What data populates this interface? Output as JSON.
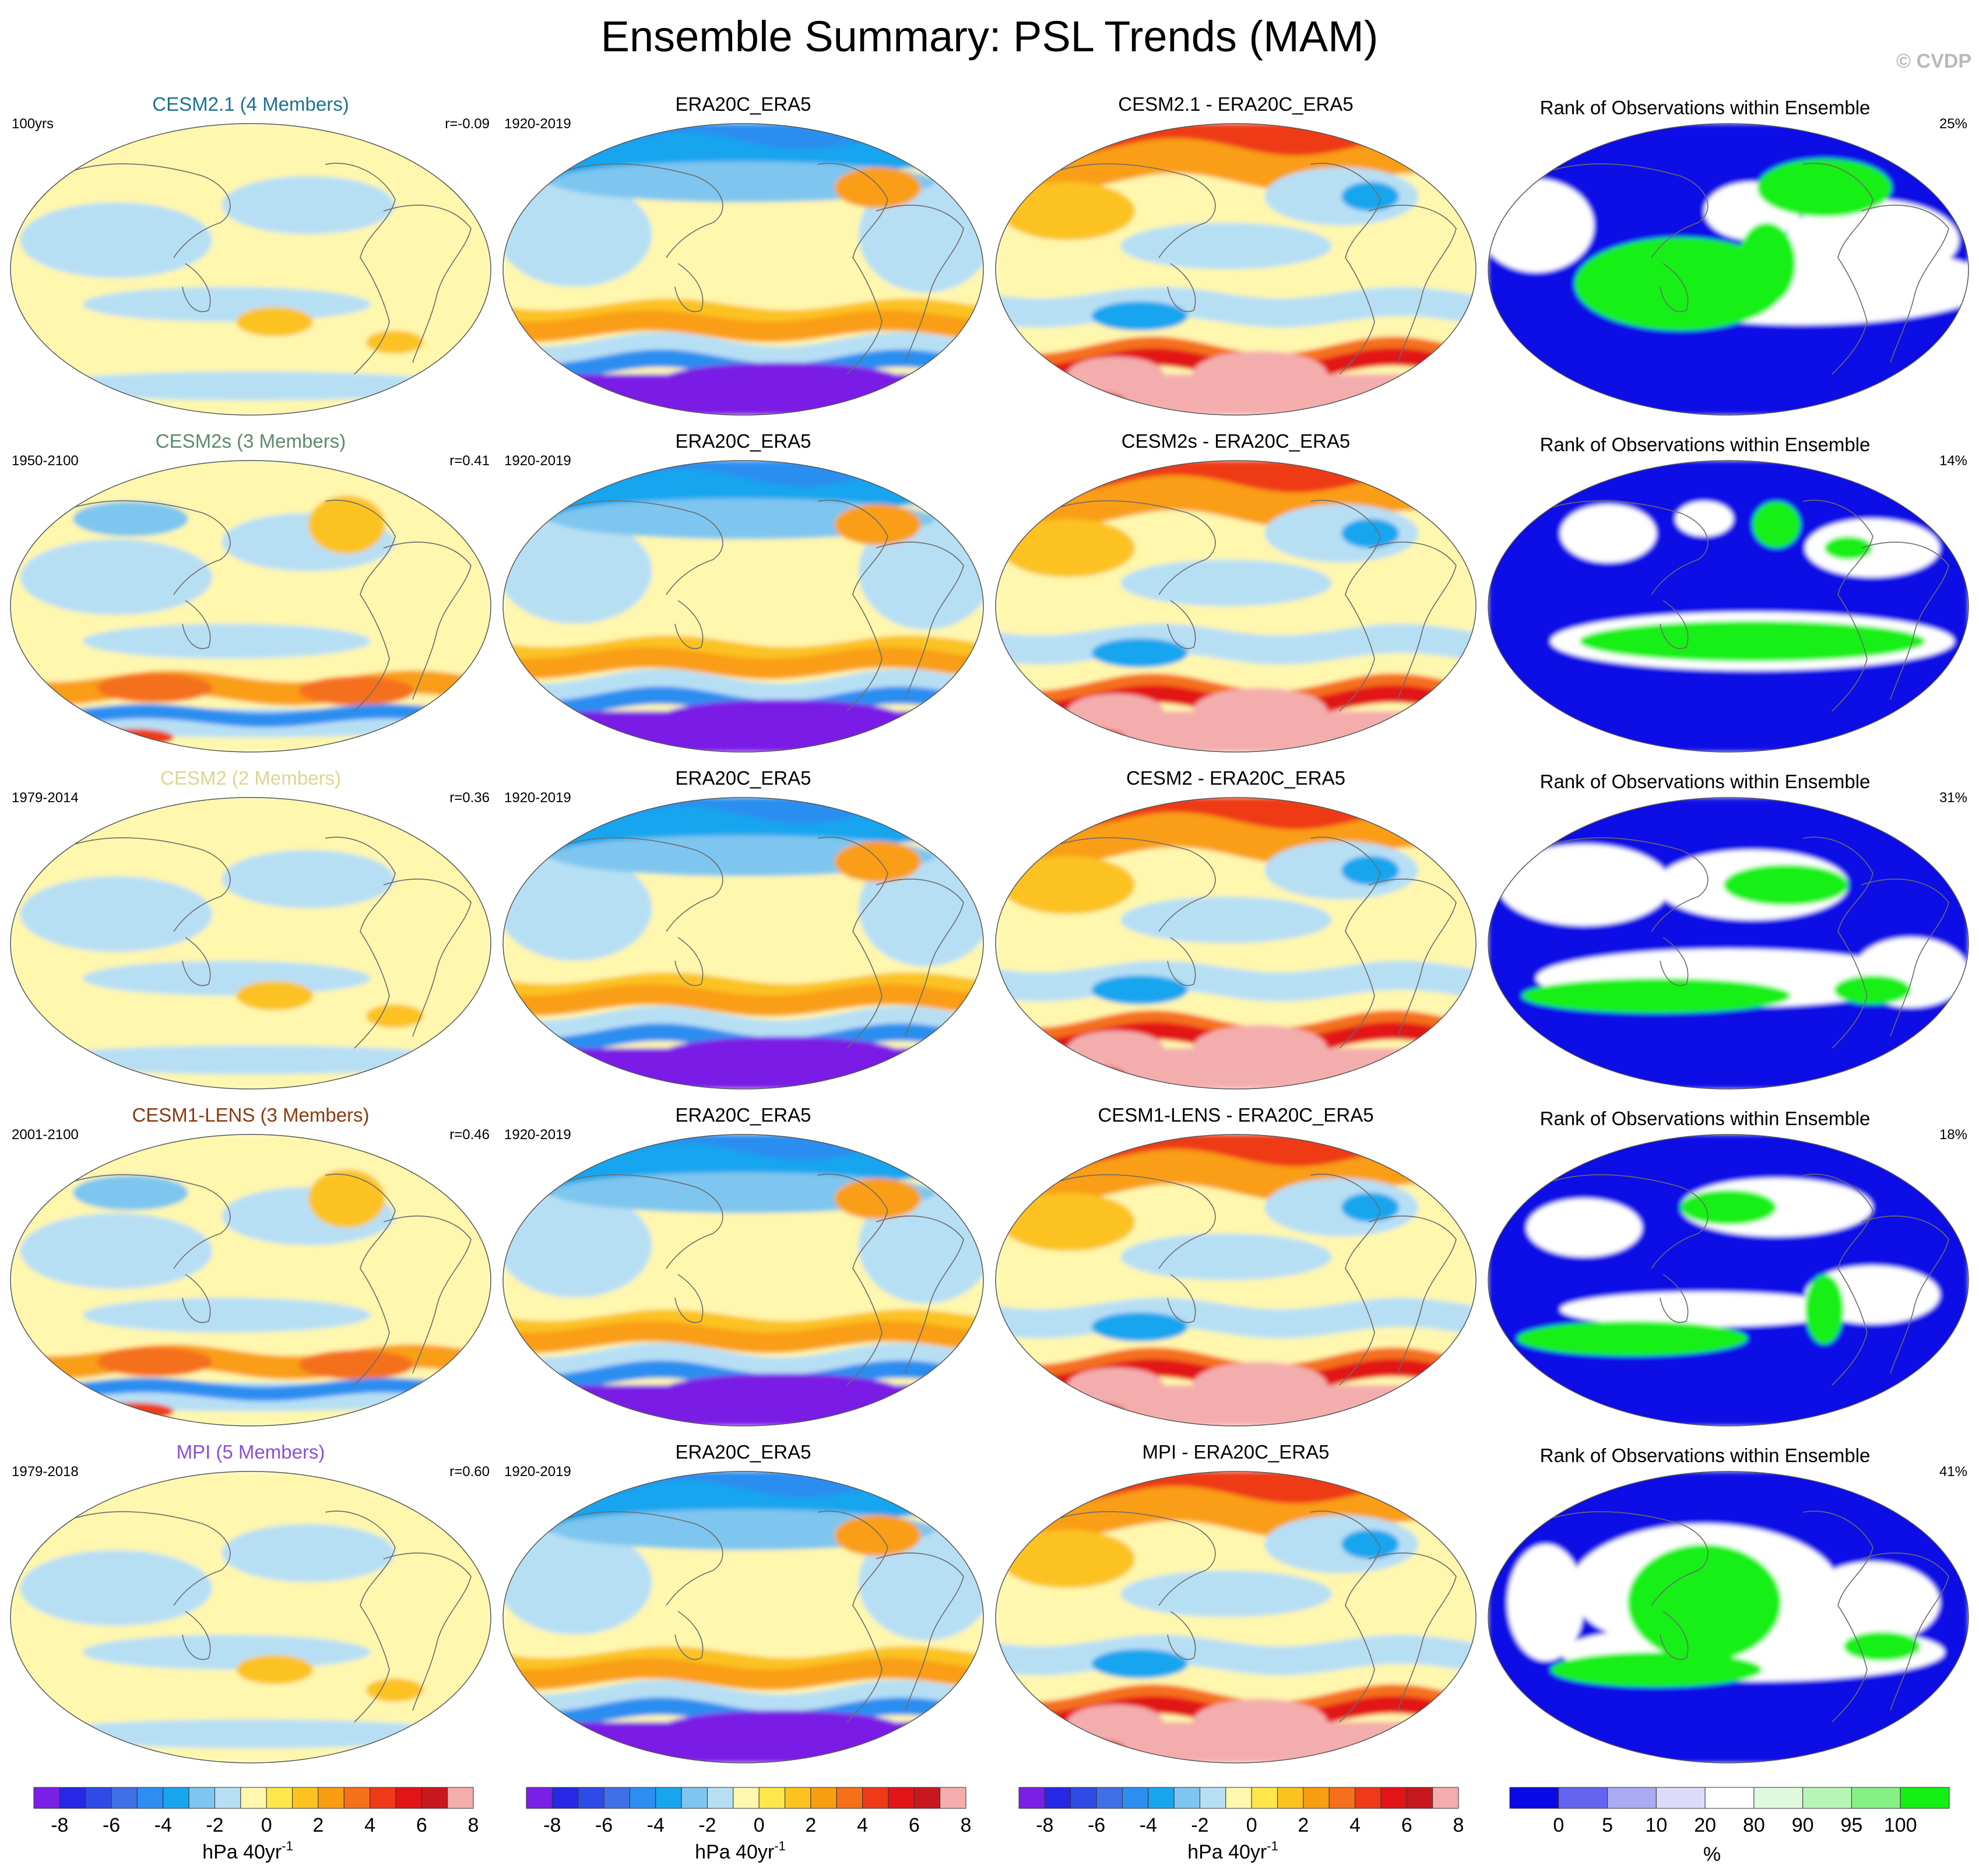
{
  "figure_title": "Ensemble Summary: PSL Trends (MAM)",
  "watermark": "© CVDP",
  "colors": {
    "trend_palette": [
      "#7a1fe6",
      "#2727e6",
      "#2f4be6",
      "#3f70e6",
      "#2c8ef0",
      "#19a5ee",
      "#7ec6ef",
      "#b7dff4",
      "#fff7ad",
      "#fde74a",
      "#fbc220",
      "#f99e12",
      "#f5701a",
      "#ee3a18",
      "#e21418",
      "#c8171d",
      "#f4adad"
    ],
    "rank_palette": [
      "#0909e6",
      "#6464f0",
      "#aaaaf2",
      "#dcdcfa",
      "#ffffff",
      "#dff9df",
      "#b7f5b7",
      "#86f086",
      "#14f014"
    ],
    "member_title_colors": [
      "#1a7290",
      "#5e8a6a",
      "#ded58f",
      "#8b3a0e",
      "#8a4fd9"
    ]
  },
  "rows": [
    {
      "model": "CESM2.1 (4 Members)",
      "period": "100yrs",
      "corr": "r=-0.09",
      "obs_title": "ERA20C_ERA5",
      "obs_period": "1920-2019",
      "diff_title": "CESM2.1 - ERA20C_ERA5",
      "rank_title": "Rank of Observations within Ensemble",
      "rank_pct": "25%"
    },
    {
      "model": "CESM2s (3 Members)",
      "period": "1950-2100",
      "corr": "r=0.41",
      "obs_title": "ERA20C_ERA5",
      "obs_period": "1920-2019",
      "diff_title": "CESM2s - ERA20C_ERA5",
      "rank_title": "Rank of Observations within Ensemble",
      "rank_pct": "14%"
    },
    {
      "model": "CESM2 (2 Members)",
      "period": "1979-2014",
      "corr": "r=0.36",
      "obs_title": "ERA20C_ERA5",
      "obs_period": "1920-2019",
      "diff_title": "CESM2 - ERA20C_ERA5",
      "rank_title": "Rank of Observations within Ensemble",
      "rank_pct": "31%"
    },
    {
      "model": "CESM1-LENS (3 Members)",
      "period": "2001-2100",
      "corr": "r=0.46",
      "obs_title": "ERA20C_ERA5",
      "obs_period": "1920-2019",
      "diff_title": "CESM1-LENS - ERA20C_ERA5",
      "rank_title": "Rank of Observations within Ensemble",
      "rank_pct": "18%"
    },
    {
      "model": "MPI (5 Members)",
      "period": "1979-2018",
      "corr": "r=0.60",
      "obs_title": "ERA20C_ERA5",
      "obs_period": "1920-2019",
      "diff_title": "MPI - ERA20C_ERA5",
      "rank_title": "Rank of Observations within Ensemble",
      "rank_pct": "41%"
    }
  ],
  "colorbars": {
    "trend": {
      "ticks": [
        "-8",
        "-6",
        "-4",
        "-2",
        "0",
        "2",
        "4",
        "6",
        "8"
      ],
      "units": "hPa 40yr",
      "units_sup": "-1"
    },
    "rank": {
      "ticks": [
        "0",
        "5",
        "10",
        "20",
        "80",
        "90",
        "95",
        "100"
      ],
      "units": "%"
    }
  },
  "chart_data": {
    "type": "heatmap",
    "title": "Ensemble Summary: PSL Trends (MAM)",
    "variable": "PSL trend",
    "season": "MAM",
    "observations": "ERA20C_ERA5 (1920-2019)",
    "panel_columns": [
      "Model ensemble mean trend",
      "Observed trend",
      "Model minus observed",
      "Rank of observations within ensemble"
    ],
    "trend_levels": [
      -8,
      -7,
      -6,
      -5,
      -4,
      -3,
      -2,
      -1,
      0,
      1,
      2,
      3,
      4,
      5,
      6,
      7,
      8
    ],
    "rank_levels": [
      0,
      5,
      10,
      20,
      80,
      90,
      95,
      100
    ],
    "units_trend": "hPa 40yr-1",
    "units_rank": "%",
    "series": [
      {
        "model": "CESM2.1",
        "members": 4,
        "period": "100yrs",
        "pattern_correlation": -0.09,
        "rank_pct": 25
      },
      {
        "model": "CESM2s",
        "members": 3,
        "period": "1950-2100",
        "pattern_correlation": 0.41,
        "rank_pct": 14
      },
      {
        "model": "CESM2",
        "members": 2,
        "period": "1979-2014",
        "pattern_correlation": 0.36,
        "rank_pct": 31
      },
      {
        "model": "CESM1-LENS",
        "members": 3,
        "period": "2001-2100",
        "pattern_correlation": 0.46,
        "rank_pct": 18
      },
      {
        "model": "MPI",
        "members": 5,
        "period": "1979-2018",
        "pattern_correlation": 0.6,
        "rank_pct": 41
      }
    ]
  }
}
